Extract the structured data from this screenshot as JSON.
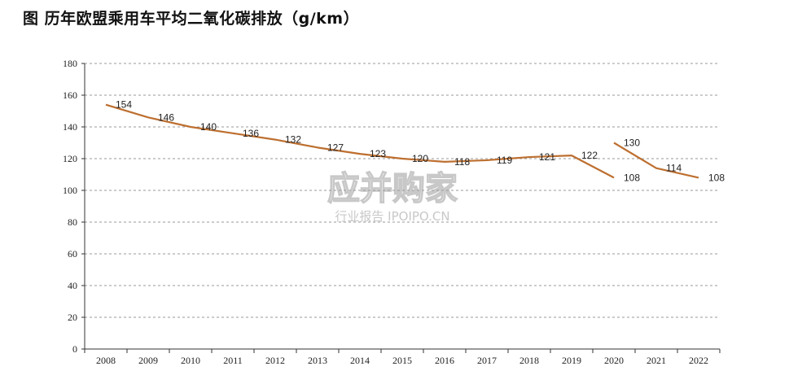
{
  "title": "图 历年欧盟乘用车平均二氧化碳排放（g/km）",
  "watermark": {
    "main": "应并购家",
    "sub": "行业报告 IPOIPO.CN"
  },
  "colors": {
    "line": "#bd6f30",
    "grid": "#9a9a9a",
    "axis": "#333333"
  },
  "chart_data": {
    "type": "line",
    "title": "图 历年欧盟乘用车平均二氧化碳排放（g/km）",
    "xlabel": "",
    "ylabel": "",
    "categories": [
      "2008",
      "2009",
      "2010",
      "2011",
      "2012",
      "2013",
      "2014",
      "2015",
      "2016",
      "2017",
      "2018",
      "2019",
      "2020",
      "2021",
      "2022"
    ],
    "ylim": [
      0,
      180
    ],
    "yticks": [
      0,
      20,
      40,
      60,
      80,
      100,
      120,
      140,
      160,
      180
    ],
    "grid": "horizontal dashed",
    "legend": "none",
    "series": [
      {
        "segments": [
          {
            "x": [
              "2008",
              "2009",
              "2010",
              "2011",
              "2012",
              "2013",
              "2014",
              "2015",
              "2016",
              "2017",
              "2018",
              "2019",
              "2020"
            ],
            "values": [
              154,
              146,
              140,
              136,
              132,
              127,
              123,
              120,
              118,
              119,
              121,
              122,
              108
            ]
          },
          {
            "x": [
              "2020",
              "2021",
              "2022"
            ],
            "values": [
              130,
              114,
              108
            ]
          }
        ]
      }
    ]
  }
}
